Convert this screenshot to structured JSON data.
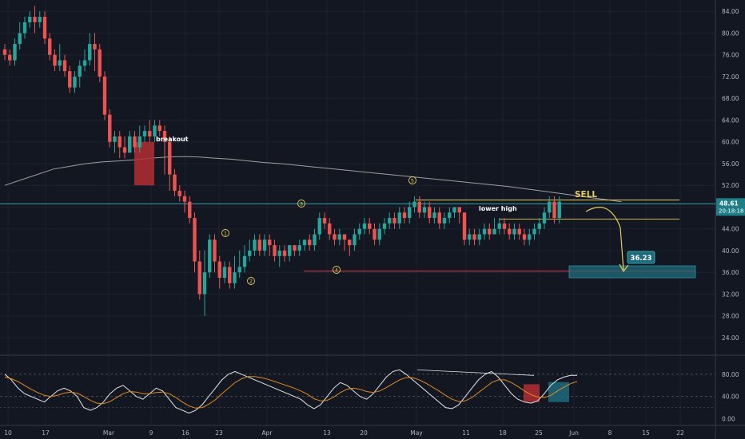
{
  "colors": {
    "background": "#131722",
    "up": "#26a69a",
    "down": "#ef5350",
    "grid": "#1e2230",
    "axis_text": "#b2b5be",
    "ma_line": "#9e9e9e",
    "annotation": "#e6cc5c",
    "support_line": "#b2353b",
    "current_price_line": "#3cb8c0",
    "stoch_k": "#e6e6e6",
    "stoch_d": "#e08a1e"
  },
  "chart_data": [
    {
      "type": "candlestick",
      "x_ticks": [
        "10",
        "17",
        "Mar",
        "9",
        "16",
        "23",
        "Apr",
        "13",
        "20",
        "May",
        "11",
        "18",
        "25",
        "Jun",
        "8",
        "15",
        "22"
      ],
      "y_ticks": [
        "84.00",
        "80.00",
        "76.00",
        "72.00",
        "68.00",
        "64.00",
        "60.00",
        "56.00",
        "52.00",
        "48.00",
        "44.00",
        "40.00",
        "36.00",
        "32.00",
        "28.00",
        "24.00"
      ],
      "ylim": [
        21.5,
        85.5
      ],
      "candles": [
        [
          77,
          76,
          78,
          75
        ],
        [
          76,
          75,
          77,
          74
        ],
        [
          75,
          78,
          79,
          74
        ],
        [
          78,
          80,
          82,
          77
        ],
        [
          80,
          82,
          83,
          79
        ],
        [
          82,
          83,
          84,
          81
        ],
        [
          83,
          82,
          85,
          80
        ],
        [
          82,
          83,
          84,
          81
        ],
        [
          83,
          79,
          84,
          78
        ],
        [
          79,
          76,
          80,
          75
        ],
        [
          76,
          74,
          77,
          73
        ],
        [
          74,
          75,
          78,
          73
        ],
        [
          75,
          73,
          76,
          72
        ],
        [
          73,
          70,
          74,
          69
        ],
        [
          70,
          72,
          73,
          69
        ],
        [
          72,
          74,
          75,
          70
        ],
        [
          74,
          75,
          77,
          73
        ],
        [
          75,
          78,
          80,
          74
        ],
        [
          78,
          77,
          80,
          73
        ],
        [
          77,
          72,
          78,
          71
        ],
        [
          72,
          65,
          73,
          64
        ],
        [
          65,
          60,
          66,
          59
        ],
        [
          60,
          61,
          62,
          58
        ],
        [
          61,
          59,
          62,
          57
        ],
        [
          59,
          58,
          61,
          57
        ],
        [
          58,
          61,
          62,
          58
        ],
        [
          61,
          59,
          62,
          58
        ],
        [
          59,
          61,
          63,
          58
        ],
        [
          61,
          62,
          63,
          60
        ],
        [
          62,
          61,
          64,
          60
        ],
        [
          61,
          63,
          64,
          60
        ],
        [
          63,
          62,
          64,
          61
        ],
        [
          62,
          60,
          63,
          54
        ],
        [
          60,
          54,
          61,
          51
        ],
        [
          54,
          51,
          55,
          50
        ],
        [
          51,
          50,
          52,
          49
        ],
        [
          50,
          49,
          51,
          47
        ],
        [
          49,
          46,
          50,
          45
        ],
        [
          46,
          38,
          47,
          36
        ],
        [
          38,
          32,
          40,
          31
        ],
        [
          32,
          36,
          40,
          28
        ],
        [
          36,
          42,
          43,
          35
        ],
        [
          42,
          38,
          43,
          36
        ],
        [
          38,
          35,
          39,
          33
        ],
        [
          35,
          37,
          38,
          34
        ],
        [
          37,
          34,
          38,
          33
        ],
        [
          34,
          36,
          39,
          33
        ],
        [
          36,
          37,
          40,
          35
        ],
        [
          37,
          39,
          41,
          36
        ],
        [
          39,
          40,
          42,
          38
        ],
        [
          40,
          42,
          43,
          39
        ],
        [
          42,
          40,
          43,
          39
        ],
        [
          40,
          42,
          43,
          39
        ],
        [
          42,
          41,
          43,
          39
        ],
        [
          41,
          39,
          42,
          38
        ],
        [
          39,
          40,
          41,
          37
        ],
        [
          40,
          39,
          41,
          38
        ],
        [
          39,
          41,
          41,
          38
        ],
        [
          41,
          40,
          41,
          39
        ],
        [
          40,
          41,
          42,
          39
        ],
        [
          41,
          42,
          42,
          40
        ],
        [
          42,
          41,
          43,
          40
        ],
        [
          41,
          43,
          44,
          40
        ],
        [
          43,
          46,
          47,
          42
        ],
        [
          46,
          45,
          47,
          44
        ],
        [
          45,
          43,
          46,
          42
        ],
        [
          43,
          42,
          44,
          41
        ],
        [
          42,
          43,
          44,
          41
        ],
        [
          43,
          42,
          43,
          40
        ],
        [
          42,
          41,
          42,
          39
        ],
        [
          41,
          43,
          44,
          40
        ],
        [
          43,
          44,
          45,
          42
        ],
        [
          44,
          45,
          46,
          43
        ],
        [
          45,
          44,
          46,
          43
        ],
        [
          44,
          42,
          45,
          41
        ],
        [
          42,
          44,
          45,
          41
        ],
        [
          44,
          45,
          46,
          43
        ],
        [
          45,
          46,
          47,
          44
        ],
        [
          46,
          45,
          47,
          44
        ],
        [
          45,
          47,
          48,
          44
        ],
        [
          47,
          46,
          48,
          45
        ],
        [
          46,
          48,
          49,
          45
        ],
        [
          48,
          49,
          50,
          47
        ],
        [
          49,
          47,
          50,
          46
        ],
        [
          47,
          48,
          49,
          46
        ],
        [
          48,
          46,
          49,
          45
        ],
        [
          46,
          47,
          48,
          45
        ],
        [
          47,
          45,
          48,
          44
        ],
        [
          45,
          46,
          47,
          44
        ],
        [
          46,
          47,
          48,
          45
        ],
        [
          47,
          48,
          48,
          46
        ],
        [
          48,
          47,
          48,
          45
        ],
        [
          47,
          42,
          47,
          41
        ],
        [
          42,
          43,
          44,
          41
        ],
        [
          43,
          42,
          44,
          41
        ],
        [
          42,
          43,
          44,
          41
        ],
        [
          43,
          44,
          45,
          42
        ],
        [
          44,
          43,
          45,
          42
        ],
        [
          43,
          44,
          46,
          43
        ],
        [
          44,
          45,
          46,
          43
        ],
        [
          45,
          44,
          46,
          43
        ],
        [
          44,
          43,
          45,
          42
        ],
        [
          43,
          44,
          45,
          42
        ],
        [
          44,
          43,
          45,
          42
        ],
        [
          43,
          42,
          44,
          41
        ],
        [
          42,
          43,
          44,
          41
        ],
        [
          43,
          44,
          45,
          42
        ],
        [
          44,
          45,
          46,
          43
        ],
        [
          45,
          47,
          48,
          44
        ],
        [
          47,
          49,
          50,
          46
        ],
        [
          49,
          46,
          50,
          45
        ],
        [
          46,
          49,
          50,
          45
        ]
      ],
      "moving_average": [
        52,
        53,
        54,
        55,
        55.5,
        56,
        56.3,
        56.5,
        56.7,
        57,
        57.2,
        57.3,
        57.2,
        57,
        56.8,
        56.5,
        56.2,
        56,
        55.7,
        55.4,
        55.1,
        54.8,
        54.5,
        54.2,
        53.9,
        53.6,
        53.3,
        53,
        52.7,
        52.4,
        52.1,
        51.8,
        51.4,
        51,
        50.6,
        50.2,
        49.8,
        49.4,
        49
      ],
      "annotations": [
        {
          "label": "breakout"
        },
        {
          "label": "1"
        },
        {
          "label": "2"
        },
        {
          "label": "3"
        },
        {
          "label": "4"
        },
        {
          "label": "5"
        },
        {
          "label": "lower high"
        },
        {
          "label": "SELL"
        },
        {
          "label": "36.23",
          "value": 36.23
        }
      ],
      "current_price": {
        "label": "48.61",
        "countdown": "20:18:18",
        "value": 48.61
      },
      "levels": {
        "support": 36.23,
        "sell_high": 49.3,
        "lower_high": 45.8
      }
    },
    {
      "type": "line",
      "name": "stochastic",
      "y_ticks": [
        "80.00",
        "40.00",
        "0.00"
      ],
      "ylim": [
        -5,
        100
      ],
      "series": [
        {
          "values": [
            80,
            70,
            55,
            45,
            40,
            35,
            30,
            40,
            50,
            55,
            50,
            40,
            20,
            15,
            20,
            30,
            45,
            55,
            60,
            50,
            40,
            35,
            45,
            55,
            50,
            35,
            20,
            15,
            10,
            15,
            25,
            40,
            55,
            70,
            80,
            85,
            80,
            75,
            70,
            65,
            60,
            55,
            50,
            45,
            40,
            35,
            25,
            18,
            25,
            40,
            55,
            65,
            60,
            50,
            40,
            35,
            45,
            60,
            75,
            85,
            88,
            80,
            70,
            60,
            50,
            40,
            30,
            20,
            18,
            25,
            40,
            55,
            70,
            80,
            85,
            75,
            60,
            45,
            35,
            30,
            28,
            32,
            45,
            60,
            70,
            75,
            78,
            78
          ]
        },
        {
          "values": [
            75,
            72,
            67,
            60,
            53,
            47,
            42,
            40,
            42,
            46,
            48,
            46,
            40,
            33,
            28,
            27,
            31,
            38,
            45,
            49,
            48,
            45,
            45,
            47,
            48,
            45,
            38,
            30,
            23,
            19,
            20,
            26,
            34,
            45,
            55,
            65,
            72,
            76,
            76,
            74,
            71,
            67,
            63,
            59,
            55,
            50,
            44,
            36,
            32,
            33,
            39,
            47,
            53,
            55,
            53,
            49,
            47,
            50,
            56,
            63,
            70,
            74,
            74,
            70,
            64,
            57,
            50,
            42,
            35,
            31,
            32,
            38,
            47,
            56,
            65,
            70,
            70,
            65,
            58,
            50,
            43,
            39,
            38,
            42,
            50,
            57,
            63,
            67
          ]
        }
      ]
    }
  ]
}
